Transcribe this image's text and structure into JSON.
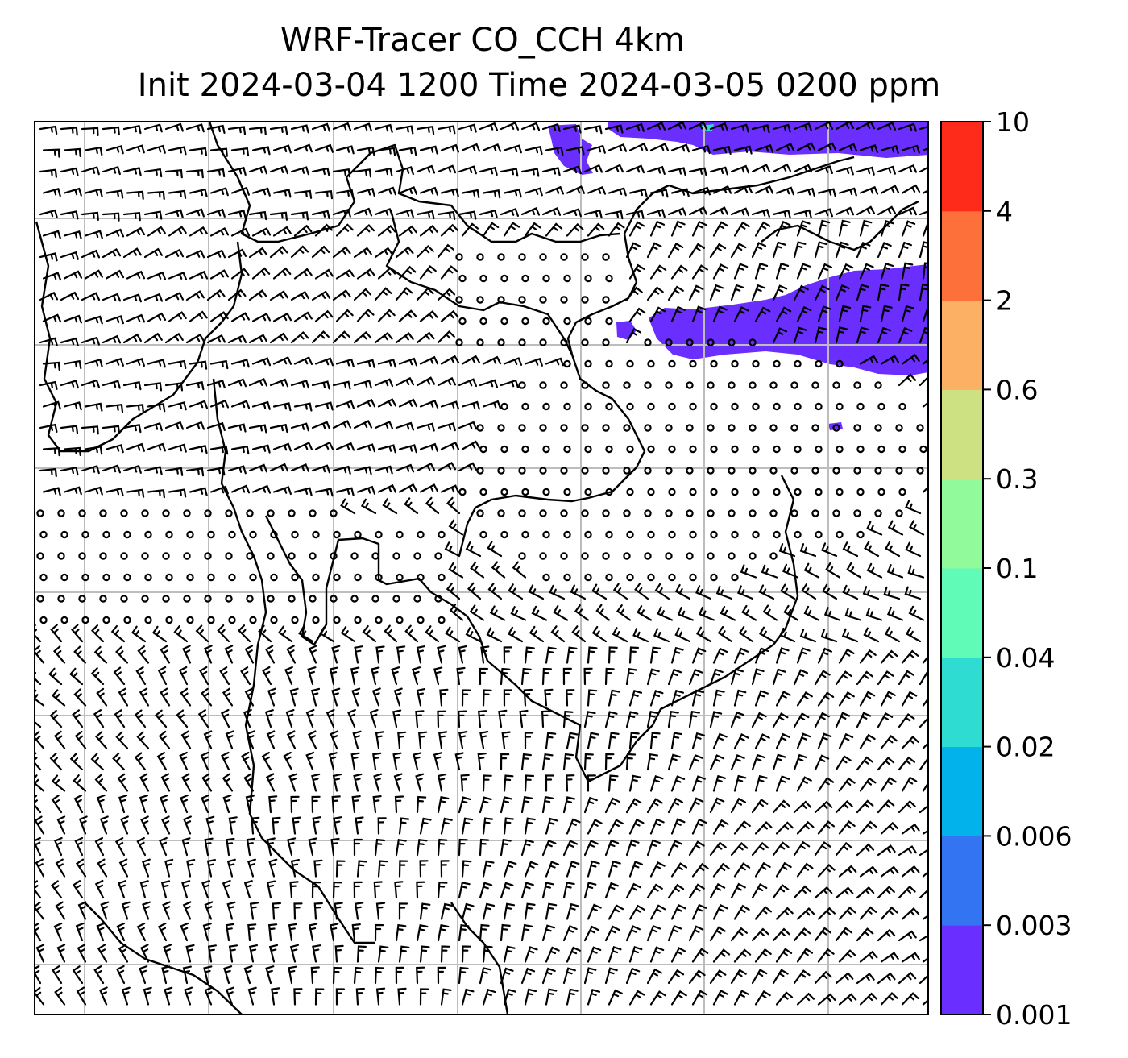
{
  "title": {
    "line1": "WRF-Tracer CO_CCH 4km",
    "line2": "Init 2024-03-04 1200 Time 2024-03-05 0200 ppm"
  },
  "colorbar": {
    "levels": [
      "0.001",
      "0.003",
      "0.006",
      "0.02",
      "0.04",
      "0.1",
      "0.3",
      "0.6",
      "2",
      "4",
      "10"
    ],
    "colors": [
      "#6a2efe",
      "#3274f2",
      "#01b3ea",
      "#2fdcd1",
      "#5ffbb7",
      "#91fa9a",
      "#cee182",
      "#fcb063",
      "#fd7039",
      "#fe2a1a"
    ]
  },
  "map": {
    "plume_color": "#6a2efe",
    "gridline_color": "#bdbdbd",
    "coastline_color": "#000000",
    "barb_color": "#000000"
  }
}
